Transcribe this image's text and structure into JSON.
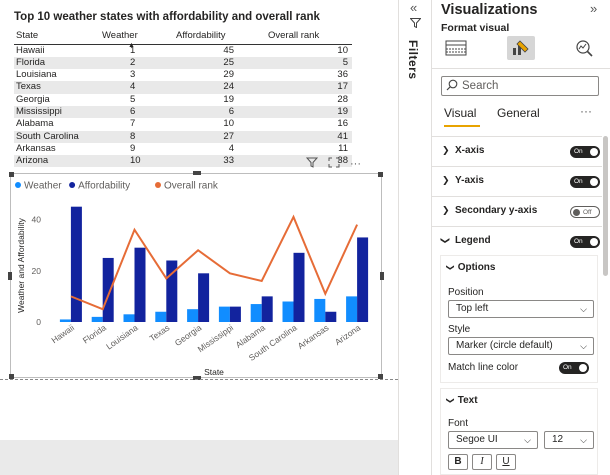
{
  "table": {
    "title": "Top 10 weather states with affordability and overall rank",
    "columns": [
      "State",
      "Weather",
      "Affordability",
      "Overall rank"
    ],
    "rows": [
      [
        "Hawaii",
        "1",
        "45",
        "10"
      ],
      [
        "Florida",
        "2",
        "25",
        "5"
      ],
      [
        "Louisiana",
        "3",
        "29",
        "36"
      ],
      [
        "Texas",
        "4",
        "24",
        "17"
      ],
      [
        "Georgia",
        "5",
        "19",
        "28"
      ],
      [
        "Mississippi",
        "6",
        "6",
        "19"
      ],
      [
        "Alabama",
        "7",
        "10",
        "16"
      ],
      [
        "South Carolina",
        "8",
        "27",
        "41"
      ],
      [
        "Arkansas",
        "9",
        "4",
        "11"
      ],
      [
        "Arizona",
        "10",
        "33",
        "38"
      ]
    ]
  },
  "chart_data": {
    "type": "bar",
    "categories": [
      "Hawaii",
      "Florida",
      "Louisiana",
      "Texas",
      "Georgia",
      "Mississippi",
      "Alabama",
      "South Carolina",
      "Arkansas",
      "Arizona"
    ],
    "series": [
      {
        "name": "Weather",
        "kind": "bar",
        "color": "#118dff",
        "values": [
          1,
          2,
          3,
          4,
          5,
          6,
          7,
          8,
          9,
          10
        ]
      },
      {
        "name": "Affordability",
        "kind": "bar",
        "color": "#12239e",
        "values": [
          45,
          25,
          29,
          24,
          19,
          6,
          10,
          27,
          4,
          33
        ]
      },
      {
        "name": "Overall rank",
        "kind": "line",
        "color": "#e66c37",
        "values": [
          10,
          5,
          36,
          17,
          28,
          19,
          16,
          41,
          11,
          38
        ]
      }
    ],
    "xlabel": "State",
    "ylabel": "Weather and Affordability",
    "yticks": [
      0,
      20,
      40
    ],
    "ylim": [
      0,
      48
    ],
    "legend_position": "top-left",
    "legend_marker": "circle",
    "grid": false
  },
  "filters": {
    "label": "Filters",
    "collapse_icon": "«"
  },
  "viz_pane": {
    "title": "Visualizations",
    "expand_icon": "»",
    "format_label": "Format visual",
    "search_placeholder": "Search",
    "tabs": [
      "Visual",
      "General"
    ],
    "more": "···",
    "sections": [
      {
        "label": "X-axis",
        "toggle": "On"
      },
      {
        "label": "Y-axis",
        "toggle": "On"
      },
      {
        "label": "Secondary y-axis",
        "toggle": "Off"
      },
      {
        "label": "Legend",
        "toggle": "On"
      }
    ],
    "options": {
      "head": "Options",
      "position_label": "Position",
      "position_value": "Top left",
      "style_label": "Style",
      "style_value": "Marker (circle default)",
      "match_label": "Match line color",
      "match_toggle": "On"
    },
    "text": {
      "head": "Text",
      "font_label": "Font",
      "font_value": "Segoe UI",
      "size_value": "12",
      "bold": "B",
      "italic": "I",
      "underline": "U"
    }
  }
}
